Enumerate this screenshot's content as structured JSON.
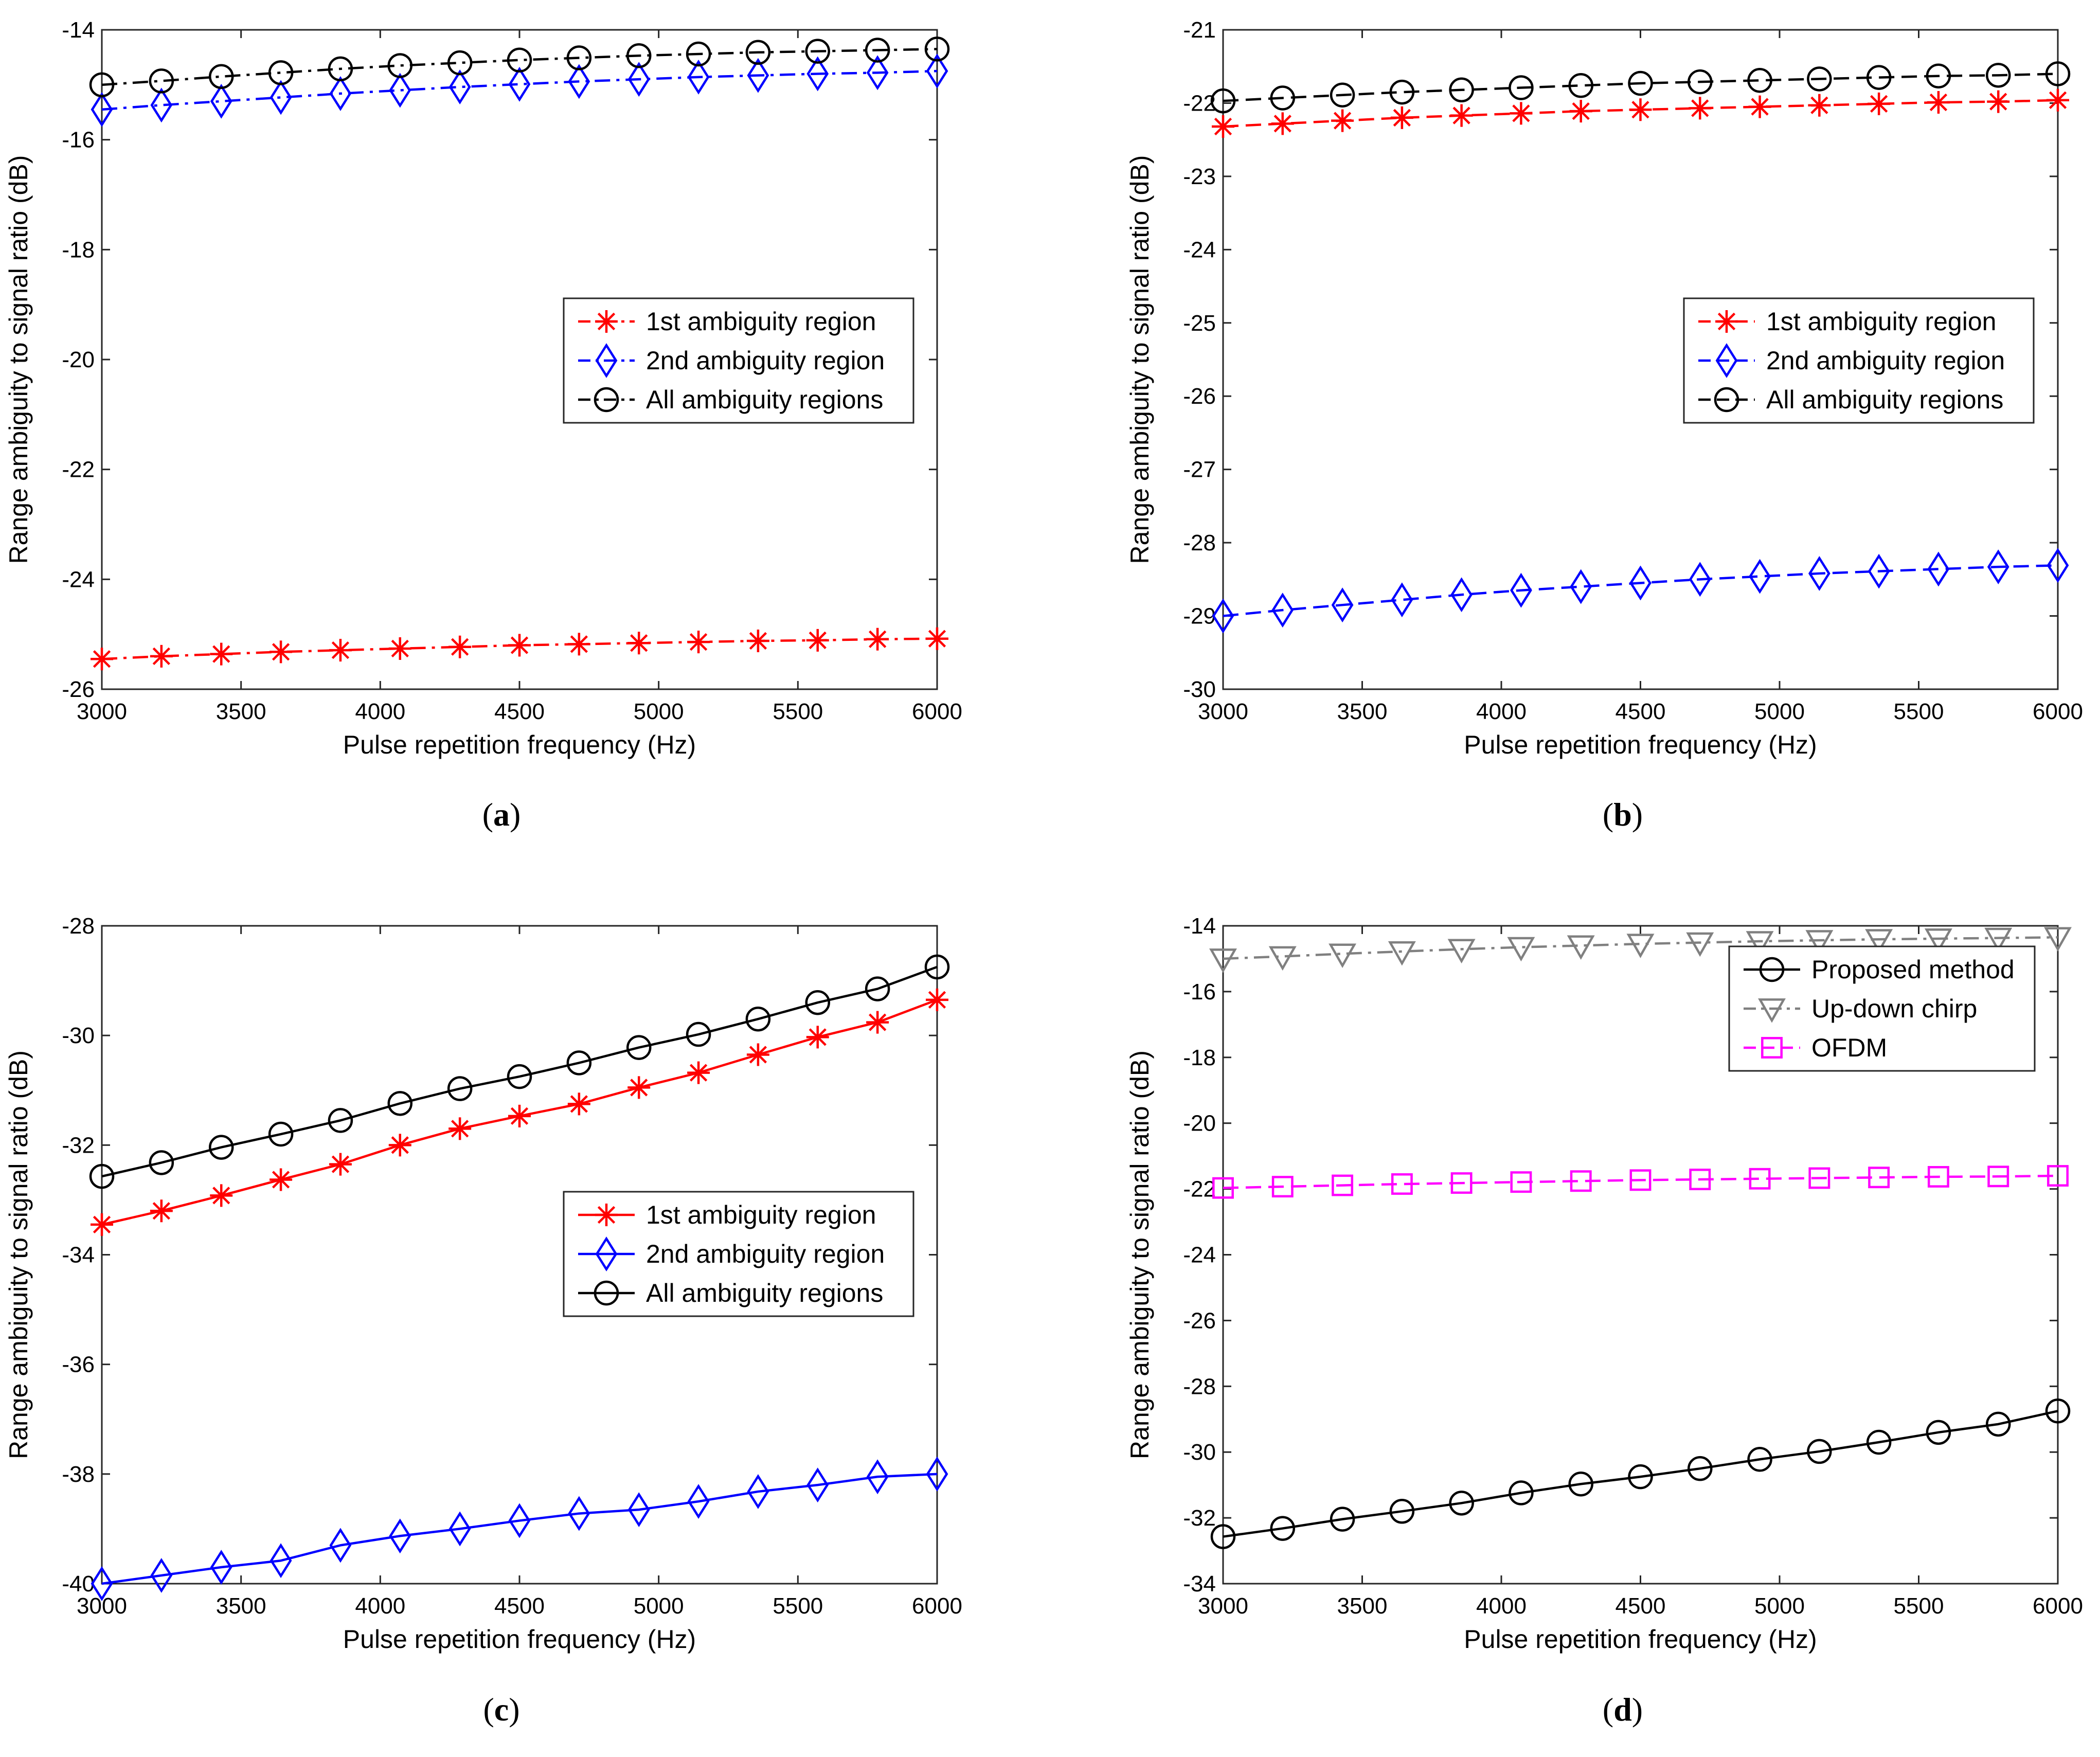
{
  "figure": {
    "panels": [
      {
        "id": "a",
        "caption_open": "(",
        "caption_letter": "a",
        "caption_close": ")"
      },
      {
        "id": "b",
        "caption_open": "(",
        "caption_letter": "b",
        "caption_close": ")"
      },
      {
        "id": "c",
        "caption_open": "(",
        "caption_letter": "c",
        "caption_close": ")"
      },
      {
        "id": "d",
        "caption_open": "(",
        "caption_letter": "d",
        "caption_close": ")"
      }
    ]
  },
  "chart_data": [
    {
      "id": "a",
      "type": "line",
      "title": "",
      "xlabel": "Pulse repetition frequency (Hz)",
      "ylabel": "Range ambiguity to signal ratio (dB)",
      "xlim": [
        3000,
        6000
      ],
      "ylim": [
        -26,
        -14
      ],
      "xticks": [
        3000,
        3500,
        4000,
        4500,
        5000,
        5500,
        6000
      ],
      "yticks": [
        -26,
        -24,
        -22,
        -20,
        -18,
        -16,
        -14
      ],
      "ytick_labels": [
        "-26",
        "-24",
        "-22",
        "-20",
        "-18",
        "-16",
        "-14"
      ],
      "grid": false,
      "legend_position": "center-right",
      "x": [
        3000,
        3214,
        3429,
        3643,
        3857,
        4071,
        4286,
        4500,
        4714,
        4929,
        5143,
        5357,
        5571,
        5786,
        6000
      ],
      "series": [
        {
          "name": "1st ambiguity region",
          "color": "#ff0000",
          "marker": "asterisk",
          "line": "dash-dot",
          "values": [
            -25.45,
            -25.4,
            -25.36,
            -25.32,
            -25.29,
            -25.26,
            -25.23,
            -25.2,
            -25.18,
            -25.16,
            -25.14,
            -25.12,
            -25.11,
            -25.09,
            -25.08
          ]
        },
        {
          "name": "2nd ambiguity region",
          "color": "#0000ff",
          "marker": "diamond",
          "line": "dash-dot",
          "values": [
            -15.45,
            -15.37,
            -15.3,
            -15.23,
            -15.16,
            -15.1,
            -15.04,
            -14.99,
            -14.94,
            -14.9,
            -14.86,
            -14.83,
            -14.8,
            -14.78,
            -14.75
          ]
        },
        {
          "name": "All ambiguity regions",
          "color": "#000000",
          "marker": "circle",
          "line": "dash-dot",
          "values": [
            -15.0,
            -14.93,
            -14.85,
            -14.78,
            -14.71,
            -14.65,
            -14.6,
            -14.55,
            -14.51,
            -14.47,
            -14.44,
            -14.41,
            -14.39,
            -14.37,
            -14.35
          ]
        }
      ]
    },
    {
      "id": "b",
      "type": "line",
      "title": "",
      "xlabel": "Pulse repetition frequency (Hz)",
      "ylabel": "Range ambiguity to signal ratio (dB)",
      "xlim": [
        3000,
        6000
      ],
      "ylim": [
        -30,
        -21
      ],
      "xticks": [
        3000,
        3500,
        4000,
        4500,
        5000,
        5500,
        6000
      ],
      "yticks": [
        -30,
        -29,
        -28,
        -27,
        -26,
        -25,
        -24,
        -23,
        -22,
        -21
      ],
      "ytick_labels": [
        "-30",
        "-29",
        "-28",
        "-27",
        "-26",
        "-25",
        "-24",
        "-23",
        "-22",
        "-21"
      ],
      "grid": false,
      "legend_position": "center-right",
      "x": [
        3000,
        3214,
        3429,
        3643,
        3857,
        4071,
        4286,
        4500,
        4714,
        4929,
        5143,
        5357,
        5571,
        5786,
        6000
      ],
      "series": [
        {
          "name": "1st ambiguity region",
          "color": "#ff0000",
          "marker": "asterisk",
          "line": "dashed",
          "values": [
            -22.32,
            -22.28,
            -22.24,
            -22.2,
            -22.17,
            -22.14,
            -22.11,
            -22.09,
            -22.07,
            -22.05,
            -22.03,
            -22.01,
            -21.99,
            -21.98,
            -21.96
          ]
        },
        {
          "name": "2nd ambiguity region",
          "color": "#0000ff",
          "marker": "diamond",
          "line": "dashed",
          "values": [
            -29.0,
            -28.92,
            -28.85,
            -28.78,
            -28.71,
            -28.65,
            -28.6,
            -28.55,
            -28.5,
            -28.46,
            -28.42,
            -28.39,
            -28.36,
            -28.33,
            -28.31
          ]
        },
        {
          "name": "All ambiguity regions",
          "color": "#000000",
          "marker": "circle",
          "line": "dashed",
          "values": [
            -21.97,
            -21.93,
            -21.89,
            -21.85,
            -21.82,
            -21.79,
            -21.76,
            -21.73,
            -21.71,
            -21.69,
            -21.67,
            -21.65,
            -21.63,
            -21.62,
            -21.6
          ]
        }
      ]
    },
    {
      "id": "c",
      "type": "line",
      "title": "",
      "xlabel": "Pulse repetition frequency (Hz)",
      "ylabel": "Range ambiguity to signal ratio (dB)",
      "xlim": [
        3000,
        6000
      ],
      "ylim": [
        -40,
        -28
      ],
      "xticks": [
        3000,
        3500,
        4000,
        4500,
        5000,
        5500,
        6000
      ],
      "yticks": [
        -40,
        -38,
        -36,
        -34,
        -32,
        -30,
        -28
      ],
      "ytick_labels": [
        "-40",
        "-38",
        "-36",
        "-34",
        "-32",
        "-30",
        "-28"
      ],
      "grid": false,
      "legend_position": "center-right",
      "x": [
        3000,
        3214,
        3429,
        3643,
        3857,
        4071,
        4286,
        4500,
        4714,
        4929,
        5143,
        5357,
        5571,
        5786,
        6000
      ],
      "series": [
        {
          "name": "1st ambiguity region",
          "color": "#ff0000",
          "marker": "asterisk",
          "line": "solid",
          "values": [
            -33.45,
            -33.2,
            -32.92,
            -32.63,
            -32.35,
            -32.0,
            -31.7,
            -31.47,
            -31.25,
            -30.95,
            -30.68,
            -30.35,
            -30.03,
            -29.76,
            -29.35
          ]
        },
        {
          "name": "2nd ambiguity region",
          "color": "#0000ff",
          "marker": "diamond",
          "line": "solid",
          "values": [
            -40.0,
            -39.85,
            -39.7,
            -39.58,
            -39.3,
            -39.13,
            -39.0,
            -38.85,
            -38.72,
            -38.65,
            -38.5,
            -38.32,
            -38.2,
            -38.05,
            -38.0
          ]
        },
        {
          "name": "All ambiguity regions",
          "color": "#000000",
          "marker": "circle",
          "line": "solid",
          "values": [
            -32.57,
            -32.32,
            -32.04,
            -31.8,
            -31.55,
            -31.24,
            -30.97,
            -30.75,
            -30.5,
            -30.22,
            -29.98,
            -29.7,
            -29.4,
            -29.15,
            -28.75
          ]
        }
      ]
    },
    {
      "id": "d",
      "type": "line",
      "title": "",
      "xlabel": "Pulse repetition frequency (Hz)",
      "ylabel": "Range ambiguity to signal ratio (dB)",
      "xlim": [
        3000,
        6000
      ],
      "ylim": [
        -34,
        -14
      ],
      "xticks": [
        3000,
        3500,
        4000,
        4500,
        5000,
        5500,
        6000
      ],
      "yticks": [
        -34,
        -32,
        -30,
        -28,
        -26,
        -24,
        -22,
        -20,
        -18,
        -16,
        -14
      ],
      "ytick_labels": [
        "-34",
        "-32",
        "-30",
        "-28",
        "-26",
        "-24",
        "-22",
        "-20",
        "-18",
        "-16",
        "-14"
      ],
      "grid": false,
      "legend_position": "top-right",
      "x": [
        3000,
        3214,
        3429,
        3643,
        3857,
        4071,
        4286,
        4500,
        4714,
        4929,
        5143,
        5357,
        5571,
        5786,
        6000
      ],
      "series": [
        {
          "name": "Proposed method",
          "color": "#000000",
          "marker": "circle",
          "line": "solid",
          "values": [
            -32.57,
            -32.32,
            -32.04,
            -31.8,
            -31.55,
            -31.24,
            -30.97,
            -30.75,
            -30.5,
            -30.22,
            -29.98,
            -29.7,
            -29.4,
            -29.15,
            -28.75
          ]
        },
        {
          "name": "Up-down chirp",
          "color": "#808080",
          "marker": "triangle-down",
          "line": "dash-dot",
          "values": [
            -15.0,
            -14.93,
            -14.85,
            -14.78,
            -14.71,
            -14.65,
            -14.6,
            -14.55,
            -14.51,
            -14.47,
            -14.44,
            -14.41,
            -14.39,
            -14.37,
            -14.35
          ]
        },
        {
          "name": "OFDM",
          "color": "#ff00ff",
          "marker": "square",
          "line": "dashed",
          "values": [
            -21.97,
            -21.93,
            -21.89,
            -21.85,
            -21.82,
            -21.79,
            -21.76,
            -21.73,
            -21.71,
            -21.69,
            -21.67,
            -21.65,
            -21.63,
            -21.62,
            -21.6
          ]
        }
      ]
    }
  ]
}
